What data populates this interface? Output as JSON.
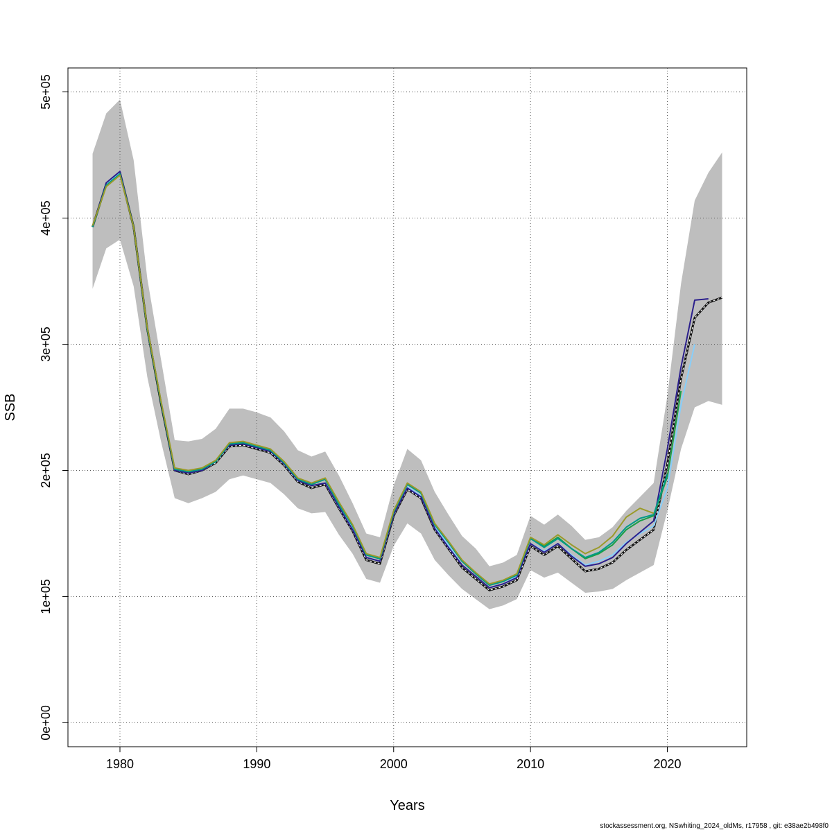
{
  "chart_data": {
    "type": "line",
    "xlabel": "Years",
    "ylabel": "SSB",
    "xlim": [
      1976.2,
      2025.8
    ],
    "ylim": [
      -19000,
      519000
    ],
    "x_ticks": [
      1980,
      1990,
      2000,
      2010,
      2020
    ],
    "y_ticks": [
      0,
      100000,
      200000,
      300000,
      400000,
      500000
    ],
    "y_tick_labels": [
      "0e+00",
      "1e+05",
      "2e+05",
      "3e+05",
      "4e+05",
      "5e+05"
    ],
    "grid": true,
    "confidence_band": {
      "x": [
        1978,
        1979,
        1980,
        1981,
        1982,
        1983,
        1984,
        1985,
        1986,
        1987,
        1988,
        1989,
        1990,
        1991,
        1992,
        1993,
        1994,
        1995,
        1996,
        1997,
        1998,
        1999,
        2000,
        2001,
        2002,
        2003,
        2004,
        2005,
        2006,
        2007,
        2008,
        2009,
        2010,
        2011,
        2012,
        2013,
        2014,
        2015,
        2016,
        2017,
        2018,
        2019,
        2020,
        2021,
        2022,
        2023,
        2024
      ],
      "upper": [
        451000,
        483000,
        494000,
        446000,
        352000,
        288000,
        224000,
        223000,
        225000,
        233000,
        249000,
        249000,
        246000,
        242000,
        231000,
        216000,
        211000,
        215000,
        196000,
        174000,
        150000,
        147000,
        188000,
        217000,
        208000,
        183000,
        165000,
        148000,
        138000,
        124000,
        127000,
        133000,
        164000,
        157000,
        165000,
        156000,
        145000,
        147000,
        155000,
        168000,
        179000,
        190000,
        259000,
        348000,
        414000,
        436000,
        452000
      ],
      "lower": [
        344000,
        376000,
        383000,
        346000,
        274000,
        223000,
        178000,
        174000,
        178000,
        183000,
        193000,
        196000,
        193000,
        190000,
        181000,
        170000,
        166000,
        167000,
        149000,
        134000,
        114000,
        111000,
        140000,
        158000,
        150000,
        129000,
        117000,
        106000,
        98000,
        90000,
        93000,
        98000,
        121000,
        115000,
        119000,
        111000,
        103000,
        104000,
        106000,
        113000,
        119000,
        125000,
        168000,
        217000,
        250000,
        255000,
        252000
      ]
    },
    "series": [
      {
        "color": "#111111",
        "dashed": true,
        "x": [
          1978,
          1979,
          1980,
          1981,
          1982,
          1983,
          1984,
          1985,
          1986,
          1987,
          1988,
          1989,
          1990,
          1991,
          1992,
          1993,
          1994,
          1995,
          1996,
          1997,
          1998,
          1999,
          2000,
          2001,
          2002,
          2003,
          2004,
          2005,
          2006,
          2007,
          2008,
          2009,
          2010,
          2011,
          2012,
          2013,
          2014,
          2015,
          2016,
          2017,
          2018,
          2019,
          2020,
          2021,
          2022,
          2023,
          2024
        ],
        "values": [
          393000,
          427000,
          436000,
          393000,
          312000,
          253000,
          200000,
          197000,
          200000,
          206000,
          219000,
          220000,
          217000,
          214000,
          204000,
          191000,
          186000,
          189000,
          170000,
          152000,
          129000,
          126000,
          164000,
          185000,
          178000,
          153000,
          138000,
          123000,
          114000,
          105000,
          108000,
          113000,
          140000,
          133000,
          140000,
          130000,
          120000,
          122000,
          127000,
          137000,
          145000,
          153000,
          205000,
          273000,
          321000,
          333000,
          337000
        ]
      },
      {
        "color": "#87cefa",
        "x": [
          1978,
          1979,
          1980,
          1981,
          1982,
          1983,
          1984,
          1985,
          1986,
          1987,
          1988,
          1989,
          1990,
          1991,
          1992,
          1993,
          1994,
          1995,
          1996,
          1997,
          1998,
          1999,
          2000,
          2001,
          2002,
          2003,
          2004,
          2005,
          2006,
          2007,
          2008,
          2009,
          2010,
          2011,
          2012,
          2013,
          2014,
          2015,
          2016,
          2017,
          2018,
          2019,
          2020,
          2021,
          2022
        ],
        "values": [
          393000,
          427000,
          436000,
          393000,
          312000,
          254000,
          200000,
          198000,
          200000,
          207000,
          221000,
          221000,
          219000,
          216000,
          205000,
          192000,
          188000,
          190000,
          171000,
          154000,
          131000,
          128000,
          165000,
          187000,
          180000,
          155000,
          141000,
          125000,
          116000,
          107000,
          110000,
          116000,
          142000,
          136000,
          142000,
          133000,
          125000,
          128000,
          133000,
          143000,
          150000,
          156000,
          186000,
          252000,
          300000
        ]
      },
      {
        "color": "#2b1f8c",
        "x": [
          1978,
          1979,
          1980,
          1981,
          1982,
          1983,
          1984,
          1985,
          1986,
          1987,
          1988,
          1989,
          1990,
          1991,
          1992,
          1993,
          1994,
          1995,
          1996,
          1997,
          1998,
          1999,
          2000,
          2001,
          2002,
          2003,
          2004,
          2005,
          2006,
          2007,
          2008,
          2009,
          2010,
          2011,
          2012,
          2013,
          2014,
          2015,
          2016,
          2017,
          2018,
          2019,
          2020,
          2021,
          2022,
          2023
        ],
        "values": [
          393000,
          428000,
          437000,
          393000,
          312000,
          254000,
          200000,
          198000,
          200000,
          207000,
          220000,
          221000,
          218000,
          215000,
          205000,
          192000,
          188000,
          190000,
          171000,
          153000,
          131000,
          128000,
          165000,
          186000,
          179000,
          154000,
          139000,
          125000,
          116000,
          107000,
          110000,
          115000,
          142000,
          135000,
          142000,
          132000,
          124000,
          126000,
          131000,
          142000,
          151000,
          160000,
          217000,
          282000,
          335000,
          336000
        ]
      },
      {
        "color": "#1a9e46",
        "x": [
          1978,
          1979,
          1980,
          1981,
          1982,
          1983,
          1984,
          1985,
          1986,
          1987,
          1988,
          1989,
          1990,
          1991,
          1992,
          1993,
          1994,
          1995,
          1996,
          1997,
          1998,
          1999,
          2000,
          2001,
          2002,
          2003,
          2004,
          2005,
          2006,
          2007,
          2008,
          2009,
          2010,
          2011,
          2012,
          2013,
          2014,
          2015,
          2016,
          2017,
          2018,
          2019,
          2020,
          2021
        ],
        "values": [
          393000,
          426000,
          435000,
          393000,
          312000,
          254000,
          201000,
          199000,
          201000,
          207000,
          221000,
          222000,
          219000,
          216000,
          206000,
          193000,
          189000,
          193000,
          173000,
          156000,
          133000,
          130000,
          167000,
          189000,
          182000,
          157000,
          143000,
          128000,
          118000,
          109000,
          112000,
          117000,
          146000,
          140000,
          147000,
          138000,
          130000,
          134000,
          141000,
          153000,
          160000,
          164000,
          195000,
          263000
        ]
      },
      {
        "color": "#009a88",
        "x": [
          1978,
          1979,
          1980,
          1981,
          1982,
          1983,
          1984,
          1985,
          1986,
          1987,
          1988,
          1989,
          1990,
          1991,
          1992,
          1993,
          1994,
          1995,
          1996,
          1997,
          1998,
          1999,
          2000,
          2001,
          2002,
          2003,
          2004,
          2005,
          2006,
          2007,
          2008,
          2009,
          2010,
          2011,
          2012,
          2013,
          2014,
          2015,
          2016,
          2017,
          2018,
          2019,
          2020
        ],
        "values": [
          393000,
          426000,
          435000,
          393000,
          312000,
          254000,
          201000,
          199000,
          201000,
          207000,
          221000,
          222000,
          219000,
          216000,
          206000,
          193000,
          189000,
          193000,
          173000,
          156000,
          133000,
          130000,
          167000,
          189000,
          182000,
          157000,
          143000,
          128000,
          118000,
          109000,
          112000,
          117000,
          146000,
          139000,
          146000,
          138000,
          131000,
          135000,
          143000,
          155000,
          162000,
          165000,
          197000
        ]
      },
      {
        "color": "#9a9a2a",
        "x": [
          1978,
          1979,
          1980,
          1981,
          1982,
          1983,
          1984,
          1985,
          1986,
          1987,
          1988,
          1989,
          1990,
          1991,
          1992,
          1993,
          1994,
          1995,
          1996,
          1997,
          1998,
          1999,
          2000,
          2001,
          2002,
          2003,
          2004,
          2005,
          2006,
          2007,
          2008,
          2009,
          2010,
          2011,
          2012,
          2013,
          2014,
          2015,
          2016,
          2017,
          2018,
          2019
        ],
        "values": [
          394000,
          425000,
          434000,
          393000,
          313000,
          255000,
          202000,
          200000,
          202000,
          208000,
          222000,
          223000,
          220000,
          217000,
          207000,
          194000,
          190000,
          194000,
          175000,
          157000,
          134000,
          131000,
          168000,
          190000,
          183000,
          158000,
          144000,
          129000,
          119000,
          110000,
          113000,
          118000,
          147000,
          141000,
          149000,
          141000,
          134000,
          139000,
          148000,
          163000,
          170000,
          166000
        ]
      }
    ]
  },
  "footer": "stockassessment.org, NSwhiting_2024_oldMs, r17958 , git: e38ae2b498f0"
}
